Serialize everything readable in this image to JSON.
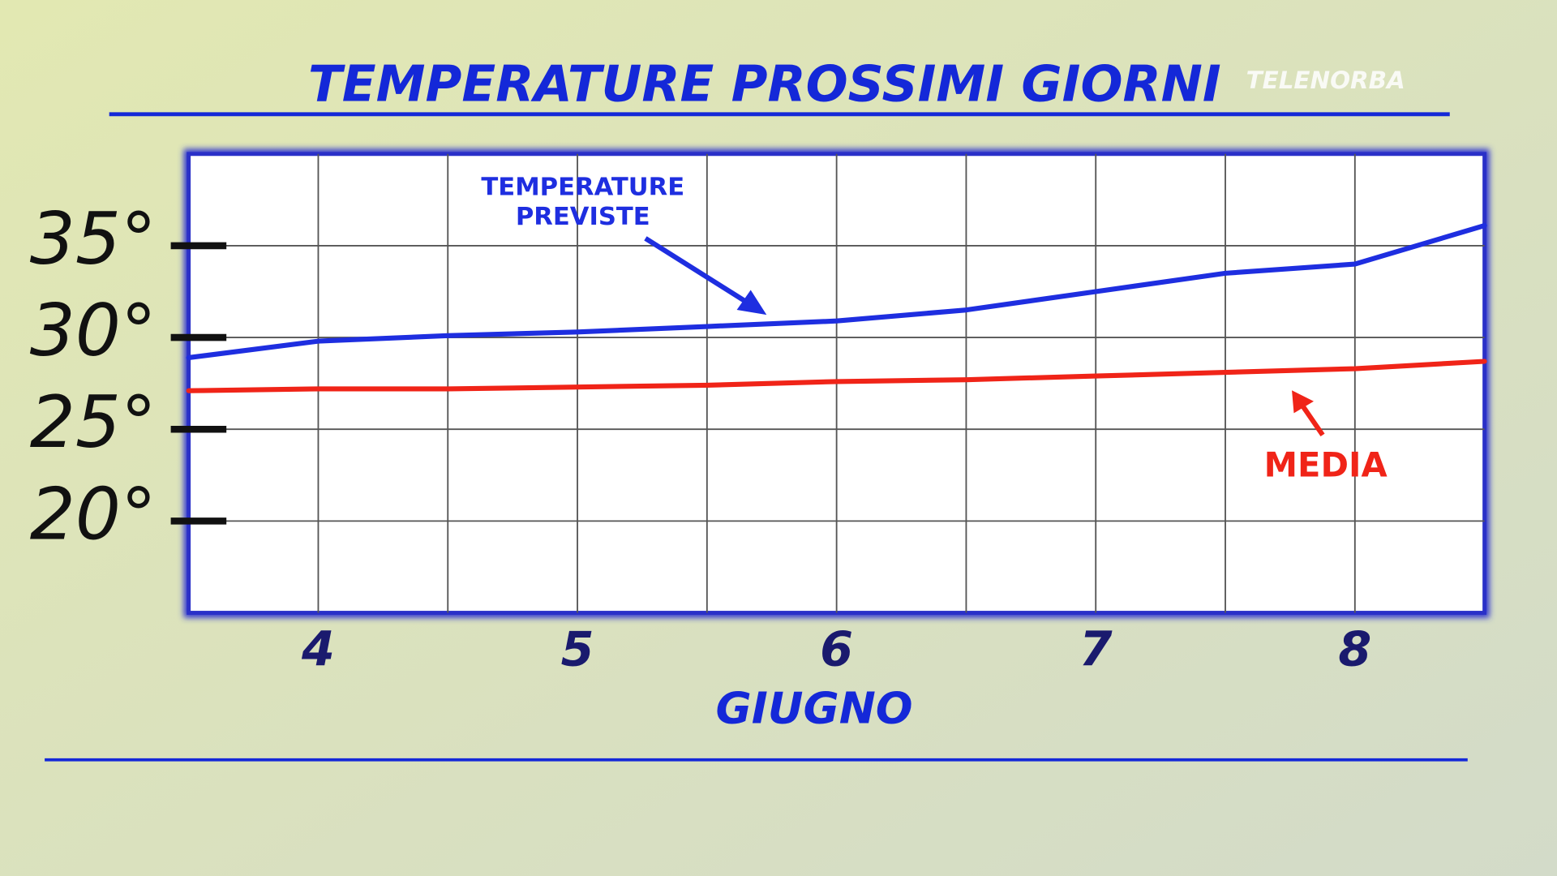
{
  "chart_data": {
    "type": "line",
    "title": "TEMPERATURE PROSSIMI GIORNI",
    "watermark": "TELENORBA",
    "x_label": "GIUGNO",
    "x": [
      3.5,
      4,
      4.5,
      5,
      5.5,
      6,
      6.5,
      7,
      7.5,
      8,
      8.5
    ],
    "series": [
      {
        "name": "TEMPERATURE PREVISTE",
        "color": "#1e2ee0",
        "values": [
          28.9,
          29.8,
          30.1,
          30.3,
          30.6,
          30.9,
          31.5,
          32.5,
          33.5,
          34.0,
          36.1
        ]
      },
      {
        "name": "MEDIA",
        "color": "#f02418",
        "values": [
          27.1,
          27.2,
          27.2,
          27.3,
          27.4,
          27.6,
          27.7,
          27.9,
          28.1,
          28.3,
          28.7
        ]
      }
    ],
    "xlim": [
      3.5,
      8.5
    ],
    "xticks": [
      4,
      5,
      6,
      7,
      8
    ],
    "xgrid": [
      4,
      4.5,
      5,
      5.5,
      6,
      6.5,
      7,
      7.5,
      8
    ],
    "ylim": [
      15,
      40
    ],
    "yticks": [
      {
        "value": 20,
        "label": "20°"
      },
      {
        "value": 25,
        "label": "25°"
      },
      {
        "value": 30,
        "label": "30°"
      },
      {
        "value": 35,
        "label": "35°"
      }
    ],
    "grid": true
  }
}
